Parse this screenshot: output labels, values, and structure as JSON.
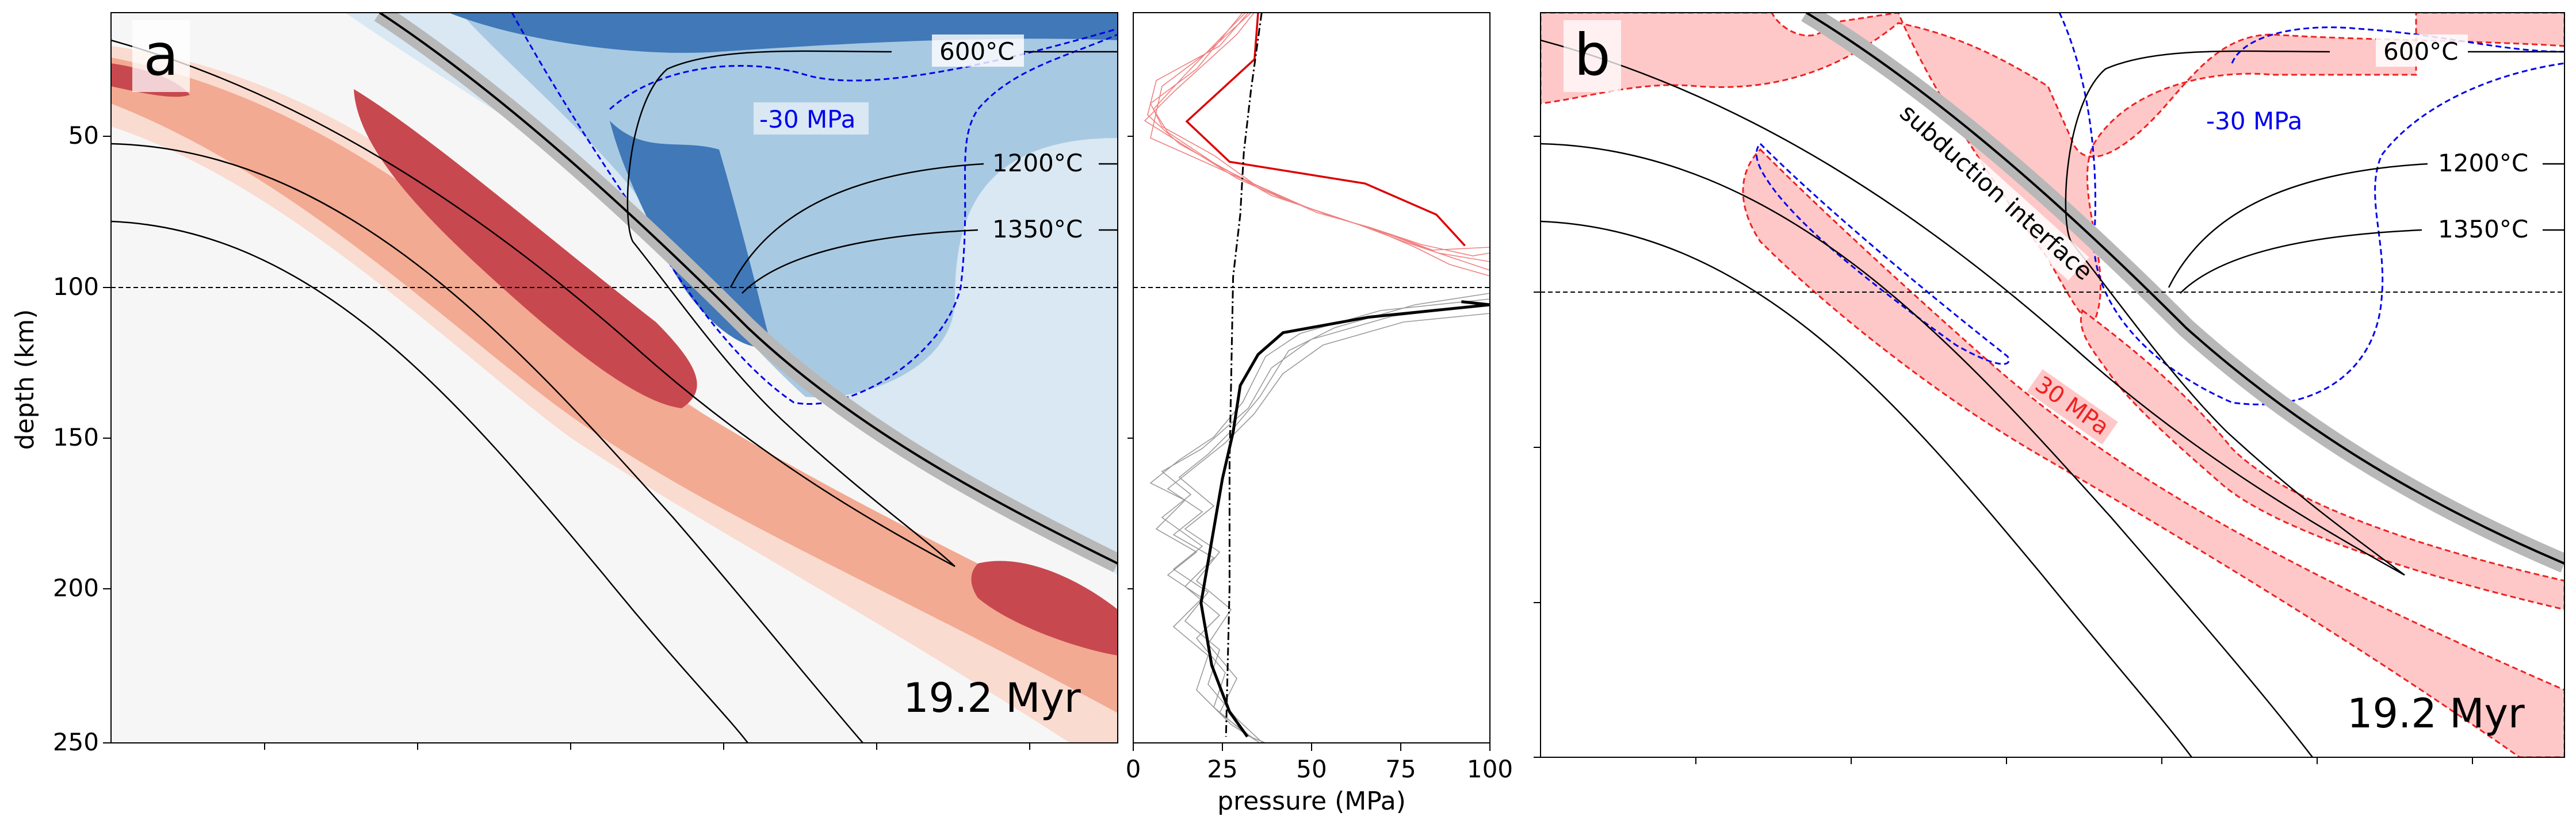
{
  "chart_data": [
    {
      "type": "area",
      "panel": "a",
      "ylabel": "depth (km)",
      "ylim": [
        250,
        15
      ],
      "yticks": [
        50,
        100,
        150,
        200,
        250
      ],
      "reference_depth": 100,
      "pressure_contour_label": "-30 MPa",
      "isotherm_labels": [
        "600°C",
        "1200°C",
        "1350°C"
      ],
      "time_label": "19.2 Myr",
      "colormap": "diverging red-blue (red = positive pressure, blue = negative pressure)"
    },
    {
      "type": "line",
      "panel": "pressure profile",
      "xlabel": "pressure (MPa)",
      "xlim": [
        0,
        100
      ],
      "xticks": [
        0,
        25,
        50,
        75,
        100
      ],
      "ylim": [
        250,
        15
      ],
      "series": [
        {
          "color": "#000000",
          "x": [
            92,
            100,
            66,
            42,
            35,
            30,
            28,
            25,
            22,
            19,
            22,
            27,
            32
          ],
          "y": [
            108,
            109,
            113,
            118,
            125,
            135,
            150,
            165,
            185,
            205,
            225,
            240,
            248
          ]
        },
        {
          "color": "#dd0000",
          "x": [
            35,
            34,
            15,
            27,
            65,
            85,
            93
          ],
          "y": [
            15,
            30,
            50,
            63,
            70,
            80,
            90
          ]
        },
        {
          "color": "#000000",
          "x": [
            36,
            33,
            31,
            30,
            28,
            27,
            27,
            26
          ],
          "y": [
            15,
            40,
            60,
            80,
            100,
            160,
            200,
            248
          ]
        }
      ]
    },
    {
      "type": "area",
      "panel": "b",
      "ylim": [
        250,
        15
      ],
      "pressure_contour_labels": [
        "30 MPa",
        "30 MPa"
      ],
      "annotation": "subduction interface",
      "isotherm_labels": [
        "600°C",
        "1200°C",
        "1350°C"
      ],
      "time_label": "19.2 Myr"
    }
  ],
  "colors": {
    "dark_red": "#c8484f",
    "mid_red": "#f2aa92",
    "light_red": "#fadbd0",
    "dark_blue": "#4078b8",
    "mid_blue": "#a8c9e2",
    "light_blue": "#d9e8f3",
    "background": "#f6f6f6",
    "contour_blue": "#0000ee",
    "contour_red": "#ee2222",
    "highlight_pink": "#ffc8c8"
  }
}
